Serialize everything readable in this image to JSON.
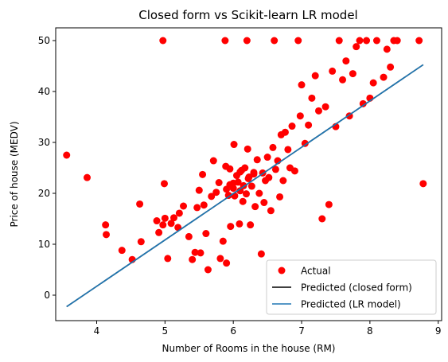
{
  "chart_data": {
    "type": "scatter",
    "title": "Closed form vs Scikit-learn LR model",
    "xlabel": "Number of Rooms in the house (RM)",
    "ylabel": "Price of house (MEDV)",
    "xlim": [
      3.4,
      9.05
    ],
    "ylim": [
      -5,
      52.5
    ],
    "xticks": [
      4,
      5,
      6,
      7,
      8,
      9
    ],
    "yticks": [
      0,
      10,
      20,
      30,
      40,
      50
    ],
    "grid": false,
    "legend_position": "bottom-right",
    "series": [
      {
        "name": "Actual",
        "kind": "scatter",
        "color": "#ff0000",
        "points": [
          [
            3.56,
            27.5
          ],
          [
            3.86,
            23.1
          ],
          [
            4.13,
            13.8
          ],
          [
            4.14,
            11.9
          ],
          [
            4.37,
            8.8
          ],
          [
            4.52,
            7.0
          ],
          [
            4.63,
            17.9
          ],
          [
            4.65,
            10.5
          ],
          [
            4.88,
            14.6
          ],
          [
            4.91,
            12.3
          ],
          [
            4.97,
            50.0
          ],
          [
            4.97,
            13.8
          ],
          [
            4.99,
            21.9
          ],
          [
            5.0,
            15.1
          ],
          [
            5.04,
            7.2
          ],
          [
            5.09,
            14.1
          ],
          [
            5.13,
            15.2
          ],
          [
            5.19,
            13.3
          ],
          [
            5.21,
            16.1
          ],
          [
            5.27,
            17.5
          ],
          [
            5.35,
            11.5
          ],
          [
            5.4,
            7.0
          ],
          [
            5.44,
            8.4
          ],
          [
            5.47,
            17.2
          ],
          [
            5.5,
            20.6
          ],
          [
            5.52,
            8.3
          ],
          [
            5.55,
            23.7
          ],
          [
            5.57,
            17.7
          ],
          [
            5.6,
            12.1
          ],
          [
            5.63,
            5.0
          ],
          [
            5.68,
            19.4
          ],
          [
            5.71,
            26.4
          ],
          [
            5.75,
            20.2
          ],
          [
            5.79,
            22.1
          ],
          [
            5.81,
            7.2
          ],
          [
            5.85,
            10.6
          ],
          [
            5.88,
            50.0
          ],
          [
            5.89,
            25.3
          ],
          [
            5.9,
            6.3
          ],
          [
            5.93,
            19.6
          ],
          [
            5.95,
            24.8
          ],
          [
            5.96,
            13.5
          ],
          [
            6.0,
            21.0
          ],
          [
            6.01,
            29.6
          ],
          [
            6.02,
            19.5
          ],
          [
            6.07,
            22.2
          ],
          [
            6.09,
            14.0
          ],
          [
            6.1,
            20.5
          ],
          [
            6.12,
            24.5
          ],
          [
            6.14,
            18.4
          ],
          [
            6.17,
            25.0
          ],
          [
            6.19,
            19.9
          ],
          [
            6.2,
            50.0
          ],
          [
            6.21,
            28.7
          ],
          [
            6.23,
            23.2
          ],
          [
            6.25,
            13.8
          ],
          [
            6.27,
            21.4
          ],
          [
            6.3,
            24.1
          ],
          [
            6.32,
            17.4
          ],
          [
            6.35,
            26.6
          ],
          [
            6.38,
            20.0
          ],
          [
            6.41,
            8.1
          ],
          [
            6.43,
            24.0
          ],
          [
            6.45,
            18.2
          ],
          [
            6.47,
            22.5
          ],
          [
            6.5,
            27.1
          ],
          [
            6.52,
            23.1
          ],
          [
            6.55,
            16.6
          ],
          [
            6.58,
            29.0
          ],
          [
            6.6,
            50.0
          ],
          [
            6.62,
            24.7
          ],
          [
            6.65,
            26.4
          ],
          [
            6.68,
            19.3
          ],
          [
            6.7,
            31.5
          ],
          [
            6.73,
            22.5
          ],
          [
            6.76,
            32.0
          ],
          [
            6.8,
            28.6
          ],
          [
            6.83,
            25.0
          ],
          [
            6.86,
            33.2
          ],
          [
            6.9,
            24.4
          ],
          [
            6.95,
            50.0
          ],
          [
            6.98,
            35.2
          ],
          [
            7.0,
            41.3
          ],
          [
            7.05,
            29.8
          ],
          [
            7.1,
            33.4
          ],
          [
            7.15,
            38.7
          ],
          [
            7.2,
            43.1
          ],
          [
            7.25,
            36.2
          ],
          [
            7.3,
            15.0
          ],
          [
            7.35,
            37.0
          ],
          [
            7.4,
            17.8
          ],
          [
            7.45,
            44.0
          ],
          [
            7.5,
            33.1
          ],
          [
            7.55,
            50.0
          ],
          [
            7.6,
            42.3
          ],
          [
            7.65,
            46.0
          ],
          [
            7.7,
            35.2
          ],
          [
            7.75,
            43.5
          ],
          [
            7.8,
            48.8
          ],
          [
            7.85,
            50.0
          ],
          [
            7.9,
            37.6
          ],
          [
            7.95,
            50.0
          ],
          [
            8.0,
            38.7
          ],
          [
            8.05,
            41.7
          ],
          [
            8.1,
            50.0
          ],
          [
            8.2,
            42.8
          ],
          [
            8.25,
            48.3
          ],
          [
            8.3,
            44.8
          ],
          [
            8.35,
            50.0
          ],
          [
            8.4,
            50.0
          ],
          [
            8.72,
            50.0
          ],
          [
            8.78,
            21.9
          ],
          [
            6.0,
            22.0
          ],
          [
            6.05,
            23.5
          ],
          [
            6.15,
            21.5
          ],
          [
            5.9,
            20.8
          ],
          [
            6.22,
            22.9
          ],
          [
            6.1,
            24.2
          ],
          [
            5.95,
            21.7
          ],
          [
            6.3,
            23.8
          ]
        ]
      },
      {
        "name": "Predicted (closed form)",
        "kind": "line",
        "color": "#000000",
        "x": [
          3.56,
          8.78
        ],
        "y": [
          -2.26,
          45.25
        ]
      },
      {
        "name": "Predicted (LR model)",
        "kind": "line",
        "color": "#1f77b4",
        "x": [
          3.56,
          8.78
        ],
        "y": [
          -2.26,
          45.25
        ]
      }
    ]
  }
}
